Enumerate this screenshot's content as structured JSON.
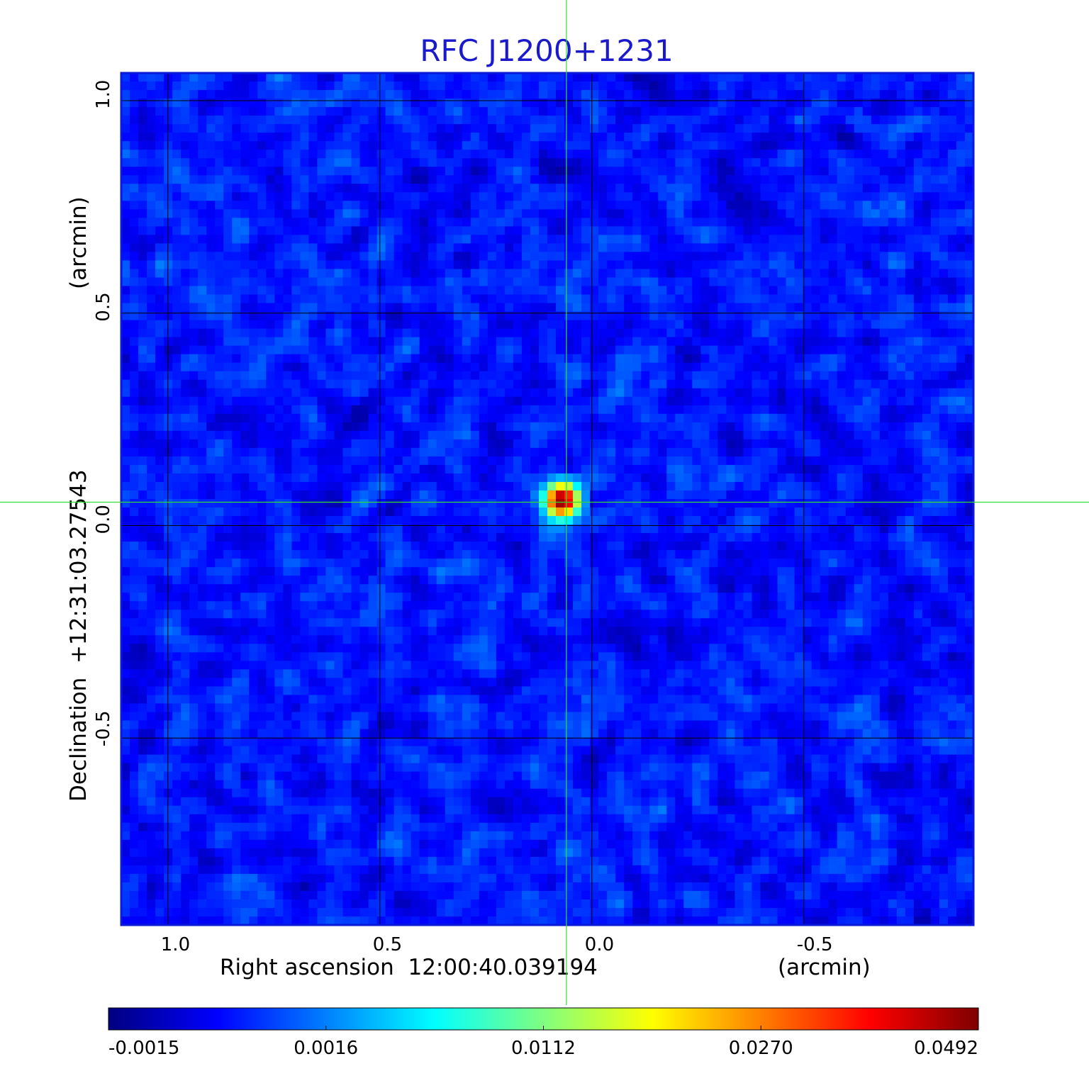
{
  "chart_data": {
    "type": "heatmap",
    "title": "RFC J1200+1231",
    "xlabel": "Right ascension  12:00:40.039194",
    "xunit": "(arcmin)",
    "ylabel": "Declination  +12:31:03.27543",
    "yunit": "(arcmin)",
    "x_range": [
      1.11,
      -0.9
    ],
    "y_range": [
      -0.94,
      1.065
    ],
    "x_ticks": [
      {
        "value": 1.0,
        "label": "1.0"
      },
      {
        "value": 0.5,
        "label": "0.5"
      },
      {
        "value": 0.0,
        "label": "0.0"
      },
      {
        "value": -0.5,
        "label": "-0.5"
      }
    ],
    "y_ticks": [
      {
        "value": 1.0,
        "label": "1.0"
      },
      {
        "value": 0.5,
        "label": "0.5"
      },
      {
        "value": 0.0,
        "label": "0.0"
      },
      {
        "value": -0.5,
        "label": "-0.5"
      }
    ],
    "grid": true,
    "crosshair": {
      "x": 0.06,
      "y": 0.055,
      "color": "#33dd33"
    },
    "source_peak": {
      "x": 0.07,
      "y": 0.06,
      "value": 0.0492
    },
    "background_level": 0.0003,
    "colormap": "jet",
    "colorbar": {
      "orientation": "horizontal",
      "placement": "bottom",
      "ticks": [
        "-0.0015",
        "0.0016",
        "0.0112",
        "0.0270",
        "0.0492"
      ]
    }
  }
}
